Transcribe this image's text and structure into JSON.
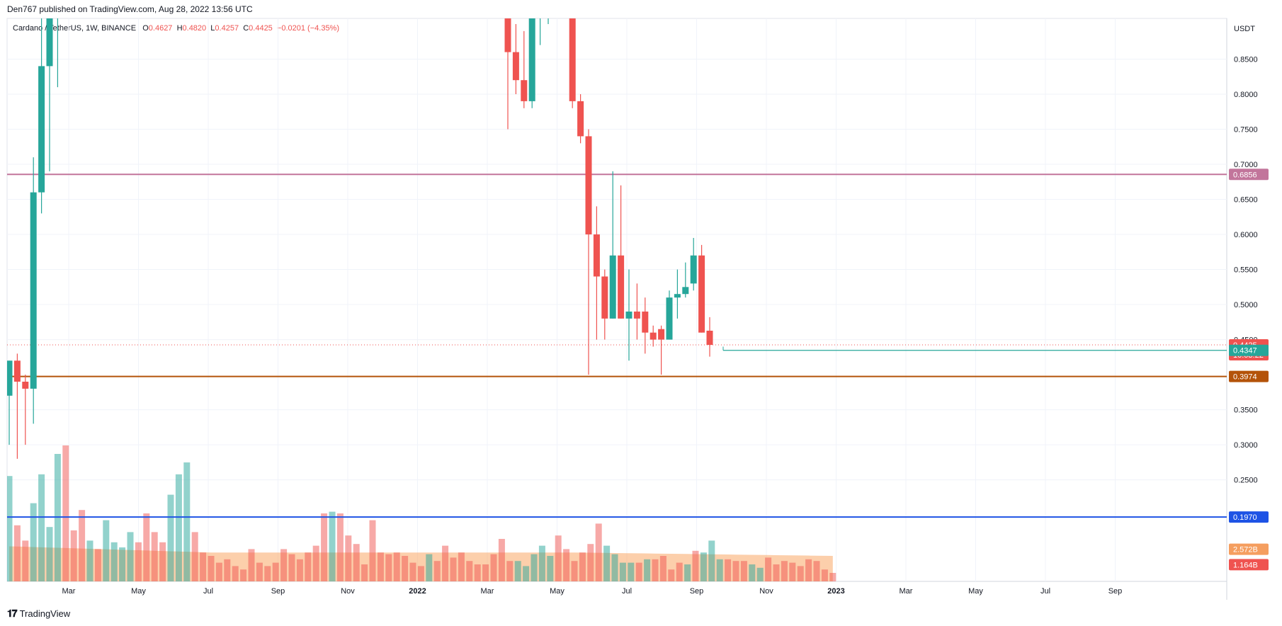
{
  "header": {
    "published": "Den767 published on TradingView.com, Aug 28, 2022 13:56 UTC"
  },
  "legend": {
    "symbol": "Cardano / TetherUS, 1W, BINANCE",
    "open_label": "O",
    "open": "0.4627",
    "high_label": "H",
    "high": "0.4820",
    "low_label": "L",
    "low": "0.4257",
    "close_label": "C",
    "close": "0.4425",
    "change": "−0.0201 (−4.35%)"
  },
  "footer": {
    "logo_icon": "tradingview-logo-icon",
    "brand": "TradingView"
  },
  "chart_data": {
    "type": "candlestick",
    "currency": "USDT",
    "interval": "1W",
    "y_ticks": [
      "0.8500",
      "0.8000",
      "0.7500",
      "0.7000",
      "0.6500",
      "0.6000",
      "0.5500",
      "0.5000",
      "0.4500",
      "0.3500",
      "0.3000",
      "0.2500"
    ],
    "x_ticks": [
      "Mar",
      "May",
      "Jul",
      "Sep",
      "Nov",
      "2022",
      "Mar",
      "May",
      "Jul",
      "Sep",
      "Nov",
      "2023",
      "Mar",
      "May",
      "Jul",
      "Sep"
    ],
    "price_tags": [
      {
        "label": "0.6856",
        "value": 0.6856,
        "color": "#c2759b"
      },
      {
        "label": "0.4425",
        "value": 0.4425,
        "color": "#ef5350",
        "sub": "10:03:22"
      },
      {
        "label": "0.4347",
        "value": 0.4347,
        "color": "#26a69a"
      },
      {
        "label": "0.3974",
        "value": 0.3974,
        "color": "#b45309"
      },
      {
        "label": "0.1970",
        "value": 0.197,
        "color": "#1e53e5"
      },
      {
        "label": "2.572B",
        "value": 0.151,
        "color": "#f59e5f"
      },
      {
        "label": "1.164B",
        "value": 0.129,
        "color": "#ef5350"
      }
    ],
    "horizontal_lines": [
      {
        "value": 0.6856,
        "color": "#c2759b"
      },
      {
        "value": 0.3974,
        "color": "#b45309"
      },
      {
        "value": 0.197,
        "color": "#1e53e5"
      }
    ],
    "candles_early": [
      {
        "o": 0.37,
        "h": 0.42,
        "l": 0.3,
        "c": 0.42
      },
      {
        "o": 0.42,
        "h": 0.43,
        "l": 0.28,
        "c": 0.39
      },
      {
        "o": 0.39,
        "h": 0.4,
        "l": 0.3,
        "c": 0.38
      },
      {
        "o": 0.38,
        "h": 0.71,
        "l": 0.33,
        "c": 0.66
      },
      {
        "o": 0.66,
        "h": 0.95,
        "l": 0.63,
        "c": 0.84
      },
      {
        "o": 0.84,
        "h": 1.2,
        "l": 0.69,
        "c": 1.1
      },
      {
        "o": 1.1,
        "h": 1.3,
        "l": 0.81,
        "c": 1.15
      }
    ],
    "candles_late": [
      {
        "o": 1.0,
        "h": 1.1,
        "l": 0.75,
        "c": 0.86
      },
      {
        "o": 0.86,
        "h": 0.9,
        "l": 0.8,
        "c": 0.82
      },
      {
        "o": 0.82,
        "h": 0.89,
        "l": 0.78,
        "c": 0.79
      },
      {
        "o": 0.79,
        "h": 0.94,
        "l": 0.78,
        "c": 0.91
      },
      {
        "o": 0.91,
        "h": 1.0,
        "l": 0.87,
        "c": 0.99
      },
      {
        "o": 0.99,
        "h": 1.05,
        "l": 0.9,
        "c": 1.05
      },
      {
        "o": 1.05,
        "h": 1.1,
        "l": 0.93,
        "c": 1.01
      },
      {
        "o": 1.01,
        "h": 1.05,
        "l": 0.94,
        "c": 0.96
      },
      {
        "o": 0.96,
        "h": 0.97,
        "l": 0.78,
        "c": 0.79
      },
      {
        "o": 0.79,
        "h": 0.8,
        "l": 0.73,
        "c": 0.74
      },
      {
        "o": 0.74,
        "h": 0.75,
        "l": 0.4,
        "c": 0.6
      },
      {
        "o": 0.6,
        "h": 0.64,
        "l": 0.45,
        "c": 0.54
      },
      {
        "o": 0.54,
        "h": 0.55,
        "l": 0.45,
        "c": 0.48
      },
      {
        "o": 0.48,
        "h": 0.69,
        "l": 0.48,
        "c": 0.57
      },
      {
        "o": 0.57,
        "h": 0.67,
        "l": 0.48,
        "c": 0.48
      },
      {
        "o": 0.48,
        "h": 0.55,
        "l": 0.42,
        "c": 0.49
      },
      {
        "o": 0.49,
        "h": 0.53,
        "l": 0.45,
        "c": 0.48
      },
      {
        "o": 0.49,
        "h": 0.51,
        "l": 0.43,
        "c": 0.46
      },
      {
        "o": 0.46,
        "h": 0.47,
        "l": 0.44,
        "c": 0.45
      },
      {
        "o": 0.465,
        "h": 0.47,
        "l": 0.4,
        "c": 0.45
      },
      {
        "o": 0.45,
        "h": 0.52,
        "l": 0.45,
        "c": 0.51
      },
      {
        "o": 0.51,
        "h": 0.55,
        "l": 0.48,
        "c": 0.515
      },
      {
        "o": 0.515,
        "h": 0.56,
        "l": 0.51,
        "c": 0.525
      },
      {
        "o": 0.53,
        "h": 0.595,
        "l": 0.52,
        "c": 0.57
      },
      {
        "o": 0.57,
        "h": 0.585,
        "l": 0.46,
        "c": 0.46
      },
      {
        "o": 0.4627,
        "h": 0.482,
        "l": 0.4257,
        "c": 0.4425
      }
    ],
    "volume_ratios": [
      0.62,
      0.33,
      0.24,
      0.46,
      0.63,
      0.32,
      0.75,
      0.8,
      0.3,
      0.42,
      0.24,
      0.19,
      0.36,
      0.23,
      0.2,
      0.29,
      0.23,
      0.4,
      0.29,
      0.23,
      0.51,
      0.63,
      0.7,
      0.29,
      0.17,
      0.15,
      0.11,
      0.13,
      0.09,
      0.07,
      0.19,
      0.11,
      0.09,
      0.11,
      0.19,
      0.16,
      0.13,
      0.17,
      0.21,
      0.4,
      0.41,
      0.4,
      0.27,
      0.22,
      0.1,
      0.36,
      0.17,
      0.16,
      0.17,
      0.15,
      0.11,
      0.09,
      0.16,
      0.12,
      0.21,
      0.14,
      0.17,
      0.12,
      0.1,
      0.1,
      0.16,
      0.25,
      0.12,
      0.12,
      0.09,
      0.16,
      0.21,
      0.15,
      0.27,
      0.19,
      0.12,
      0.17,
      0.22,
      0.34,
      0.21,
      0.16,
      0.11,
      0.11,
      0.11,
      0.13,
      0.13,
      0.15,
      0.07,
      0.11,
      0.1,
      0.18,
      0.17,
      0.24,
      0.13,
      0.13,
      0.12,
      0.12,
      0.1,
      0.08,
      0.14,
      0.1,
      0.12,
      0.11,
      0.09,
      0.13,
      0.12,
      0.07,
      0.05
    ]
  }
}
